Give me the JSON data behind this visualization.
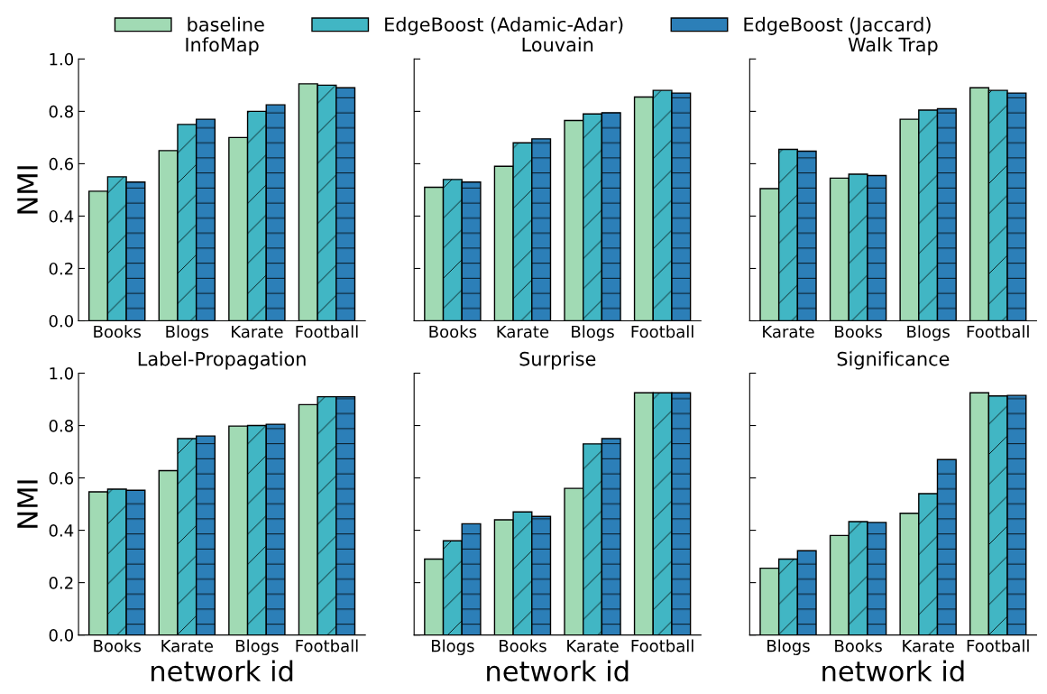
{
  "chart_data": [
    {
      "type": "bar",
      "title": "InfoMap",
      "ylabel": "NMI",
      "categories": [
        "Books",
        "Blogs",
        "Karate",
        "Football"
      ],
      "ylim": [
        0,
        1.0
      ],
      "yticks": [
        {
          "value": 0,
          "label": "0.0"
        },
        0.2,
        0.4,
        0.6,
        0.8,
        {
          "value": 1,
          "label": "1.0"
        }
      ],
      "legend": "top",
      "series": [
        {
          "name": "baseline",
          "color": "#a1dab4",
          "values": [
            0.495,
            0.65,
            0.7,
            0.905
          ]
        },
        {
          "name": "EdgeBoost (Adamic-Adar)",
          "color": "#41b6c4",
          "values": [
            0.55,
            0.75,
            0.8,
            0.9
          ]
        },
        {
          "name": "EdgeBoost (Jaccard)",
          "color": "#2c7fb8",
          "values": [
            0.53,
            0.77,
            0.825,
            0.89
          ]
        }
      ]
    },
    {
      "type": "bar",
      "title": "Louvain",
      "categories": [
        "Books",
        "Karate",
        "Blogs",
        "Football"
      ],
      "ylim": [
        0,
        1.0
      ],
      "yticks": [
        {
          "value": 0,
          "label": null
        },
        {
          "value": 0.2,
          "label": null
        },
        {
          "value": 0.4,
          "label": null
        },
        {
          "value": 0.6,
          "label": null
        },
        {
          "value": 0.8,
          "label": null
        },
        {
          "value": 1,
          "label": null
        }
      ],
      "tick_labels": "x",
      "series": [
        {
          "color": "#a1dab4",
          "values": [
            0.51,
            0.59,
            0.765,
            0.855
          ]
        },
        {
          "color": "#41b6c4",
          "values": [
            0.54,
            0.68,
            0.79,
            0.88
          ]
        },
        {
          "color": "#2c7fb8",
          "values": [
            0.53,
            0.695,
            0.795,
            0.87
          ]
        }
      ]
    },
    {
      "type": "bar",
      "title": "Walk Trap",
      "categories": [
        "Karate",
        "Books",
        "Blogs",
        "Football"
      ],
      "ylim": [
        0,
        1.0
      ],
      "yticks": [
        {
          "value": 0,
          "label": null
        },
        {
          "value": 0.2,
          "label": null
        },
        {
          "value": 0.4,
          "label": null
        },
        {
          "value": 0.6,
          "label": null
        },
        {
          "value": 0.8,
          "label": null
        },
        {
          "value": 1,
          "label": null
        }
      ],
      "tick_labels": "x",
      "series": [
        {
          "color": "#a1dab4",
          "values": [
            0.505,
            0.545,
            0.77,
            0.89
          ]
        },
        {
          "color": "#41b6c4",
          "values": [
            0.655,
            0.56,
            0.805,
            0.88
          ]
        },
        {
          "color": "#2c7fb8",
          "values": [
            0.648,
            0.555,
            0.81,
            0.87
          ]
        }
      ]
    },
    {
      "type": "bar",
      "title": "Label-Propagation",
      "ylabel": "NMI",
      "xlabel": "network id",
      "categories": [
        "Books",
        "Karate",
        "Blogs",
        "Football"
      ],
      "ylim": [
        0,
        1.0
      ],
      "yticks": [
        {
          "value": 0,
          "label": "0.0"
        },
        0.2,
        0.4,
        0.6,
        0.8,
        {
          "value": 1,
          "label": "1.0"
        }
      ],
      "series": [
        {
          "color": "#a1dab4",
          "values": [
            0.547,
            0.628,
            0.798,
            0.88
          ]
        },
        {
          "color": "#41b6c4",
          "values": [
            0.557,
            0.75,
            0.8,
            0.91
          ]
        },
        {
          "color": "#2c7fb8",
          "values": [
            0.553,
            0.76,
            0.805,
            0.91
          ]
        }
      ]
    },
    {
      "type": "bar",
      "title": "Surprise",
      "xlabel": "network id",
      "categories": [
        "Blogs",
        "Books",
        "Karate",
        "Football"
      ],
      "ylim": [
        0,
        1.0
      ],
      "yticks": [
        {
          "value": 0,
          "label": null
        },
        {
          "value": 0.2,
          "label": null
        },
        {
          "value": 0.4,
          "label": null
        },
        {
          "value": 0.6,
          "label": null
        },
        {
          "value": 0.8,
          "label": null
        },
        {
          "value": 1,
          "label": null
        }
      ],
      "tick_labels": "x",
      "series": [
        {
          "color": "#a1dab4",
          "values": [
            0.29,
            0.44,
            0.56,
            0.925
          ]
        },
        {
          "color": "#41b6c4",
          "values": [
            0.36,
            0.47,
            0.73,
            0.925
          ]
        },
        {
          "color": "#2c7fb8",
          "values": [
            0.425,
            0.453,
            0.75,
            0.925
          ]
        }
      ]
    },
    {
      "type": "bar",
      "title": "Significance",
      "xlabel": "network id",
      "categories": [
        "Blogs",
        "Books",
        "Karate",
        "Football"
      ],
      "ylim": [
        0,
        1.0
      ],
      "yticks": [
        {
          "value": 0,
          "label": null
        },
        {
          "value": 0.2,
          "label": null
        },
        {
          "value": 0.4,
          "label": null
        },
        {
          "value": 0.6,
          "label": null
        },
        {
          "value": 0.8,
          "label": null
        },
        {
          "value": 1,
          "label": null
        }
      ],
      "tick_labels": "x",
      "series": [
        {
          "color": "#a1dab4",
          "values": [
            0.255,
            0.38,
            0.465,
            0.925
          ]
        },
        {
          "color": "#41b6c4",
          "values": [
            0.29,
            0.433,
            0.54,
            0.913
          ]
        },
        {
          "color": "#2c7fb8",
          "values": [
            0.322,
            0.43,
            0.67,
            0.915
          ]
        }
      ]
    }
  ]
}
